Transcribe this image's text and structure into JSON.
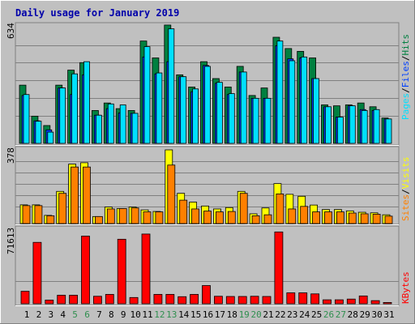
{
  "title": "Daily usage for January 2019",
  "colors": {
    "background": "#c0c0c0",
    "title": "#0000aa",
    "hits": "#008040",
    "files": "#0040ff",
    "pages": "#00e0ff",
    "visits": "#ffff00",
    "sites": "#ff8000",
    "kbytes": "#ff0000",
    "weekend_day": "#2f8f4f",
    "weekday": "#000000"
  },
  "legend": {
    "top": [
      "Pages",
      "/",
      "Files",
      "/",
      "Hits"
    ],
    "middle": [
      "Sites",
      "/",
      "Visits"
    ],
    "bottom": [
      "KBytes"
    ]
  },
  "chart_data": [
    {
      "type": "bar",
      "panel": "hits-files-pages",
      "ymax_label": "634",
      "ylim": [
        0,
        634
      ],
      "categories": [
        "1",
        "2",
        "3",
        "4",
        "5",
        "6",
        "7",
        "8",
        "9",
        "10",
        "11",
        "12",
        "13",
        "14",
        "15",
        "16",
        "17",
        "18",
        "19",
        "20",
        "21",
        "22",
        "23",
        "24",
        "25",
        "26",
        "27",
        "28",
        "29",
        "30",
        "31"
      ],
      "series": [
        {
          "name": "Hits",
          "values": [
            310,
            145,
            95,
            310,
            390,
            430,
            175,
            215,
            185,
            175,
            545,
            455,
            630,
            365,
            300,
            435,
            345,
            300,
            410,
            255,
            295,
            565,
            505,
            490,
            455,
            205,
            200,
            205,
            215,
            195,
            135
          ]
        },
        {
          "name": "Files",
          "values": [
            255,
            120,
            72,
            295,
            260,
            365,
            150,
            185,
            162,
            160,
            460,
            370,
            435,
            355,
            275,
            415,
            320,
            260,
            380,
            240,
            240,
            520,
            450,
            455,
            345,
            195,
            140,
            200,
            180,
            175,
            130
          ]
        },
        {
          "name": "Pages",
          "values": [
            260,
            118,
            60,
            295,
            370,
            435,
            150,
            210,
            205,
            160,
            515,
            375,
            610,
            355,
            290,
            410,
            325,
            265,
            380,
            240,
            240,
            545,
            440,
            460,
            345,
            195,
            140,
            200,
            175,
            180,
            130
          ]
        }
      ]
    },
    {
      "type": "bar",
      "panel": "visits-sites",
      "ymax_label": "378",
      "ylim": [
        0,
        378
      ],
      "categories": [
        "1",
        "2",
        "3",
        "4",
        "5",
        "6",
        "7",
        "8",
        "9",
        "10",
        "11",
        "12",
        "13",
        "14",
        "15",
        "16",
        "17",
        "18",
        "19",
        "20",
        "21",
        "22",
        "23",
        "24",
        "25",
        "26",
        "27",
        "28",
        "29",
        "30",
        "31"
      ],
      "series": [
        {
          "name": "Visits",
          "values": [
            96,
            96,
            42,
            165,
            305,
            312,
            36,
            85,
            77,
            85,
            70,
            62,
            378,
            155,
            110,
            90,
            75,
            82,
            165,
            50,
            80,
            205,
            150,
            140,
            95,
            72,
            72,
            65,
            58,
            55,
            45
          ]
        },
        {
          "name": "Sites",
          "values": [
            92,
            92,
            40,
            155,
            290,
            290,
            36,
            75,
            77,
            80,
            60,
            60,
            300,
            120,
            75,
            64,
            60,
            62,
            155,
            40,
            45,
            152,
            75,
            88,
            60,
            60,
            60,
            54,
            50,
            48,
            38
          ]
        }
      ]
    },
    {
      "type": "bar",
      "panel": "kbytes",
      "ymax_label": "71613",
      "ylim": [
        0,
        71613
      ],
      "categories": [
        "1",
        "2",
        "3",
        "4",
        "5",
        "6",
        "7",
        "8",
        "9",
        "10",
        "11",
        "12",
        "13",
        "14",
        "15",
        "16",
        "17",
        "18",
        "19",
        "20",
        "21",
        "22",
        "23",
        "24",
        "25",
        "26",
        "27",
        "28",
        "29",
        "30",
        "31"
      ],
      "series": [
        {
          "name": "KBytes",
          "values": [
            12000,
            59000,
            3500,
            8200,
            8200,
            65000,
            7200,
            9000,
            62000,
            6000,
            67000,
            9000,
            9000,
            6800,
            9000,
            17500,
            7200,
            7000,
            7000,
            7200,
            7000,
            69000,
            10500,
            10500,
            9500,
            3800,
            3800,
            4500,
            7500,
            3000,
            1200
          ]
        }
      ]
    }
  ]
}
